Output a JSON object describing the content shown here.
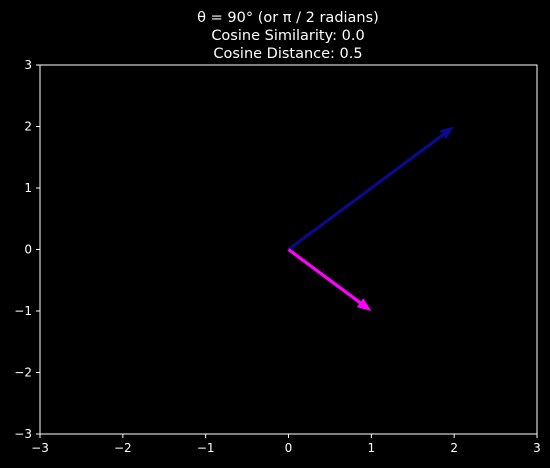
{
  "chart_data": {
    "type": "vector",
    "title_lines": [
      "θ = 90° (or π / 2 radians)",
      "Cosine Similarity: 0.0",
      "Cosine Distance: 0.5"
    ],
    "xlabel": "",
    "ylabel": "",
    "xlim": [
      -3,
      3
    ],
    "ylim": [
      -3,
      3
    ],
    "x_ticks": [
      -3,
      -2,
      -1,
      0,
      1,
      2,
      3
    ],
    "y_ticks": [
      -3,
      -2,
      -1,
      0,
      1,
      2,
      3
    ],
    "x_tick_labels": [
      "−3",
      "−2",
      "−1",
      "0",
      "1",
      "2",
      "3"
    ],
    "y_tick_labels": [
      "−3",
      "−2",
      "−1",
      "0",
      "1",
      "2",
      "3"
    ],
    "grid": false,
    "vectors": [
      {
        "origin": [
          0,
          0
        ],
        "components": [
          2,
          2
        ],
        "color": "#0a0a8c"
      },
      {
        "origin": [
          0,
          0
        ],
        "components": [
          1,
          -1
        ],
        "color": "#ff00ff"
      }
    ]
  },
  "colors": {
    "background": "#000000",
    "axes": "#ffffff",
    "text": "#ffffff"
  }
}
